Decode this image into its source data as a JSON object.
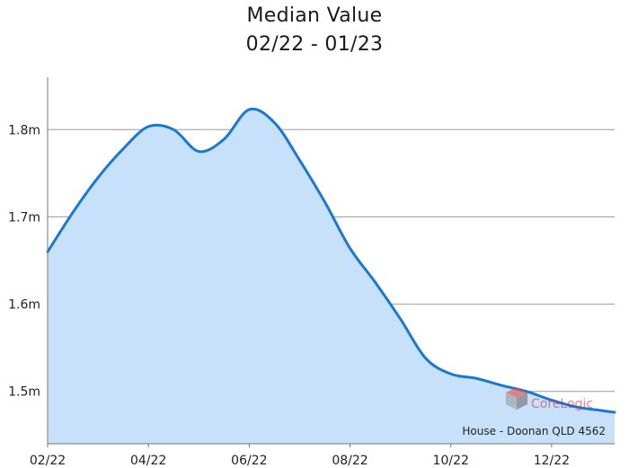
{
  "chart_data": {
    "type": "area",
    "title": "Median Value",
    "subtitle": "02/22 - 01/23",
    "x_tick_labels": [
      "02/22",
      "04/22",
      "06/22",
      "08/22",
      "10/22",
      "12/22"
    ],
    "y_tick_labels": [
      "1.5m",
      "1.6m",
      "1.7m",
      "1.8m"
    ],
    "y_ticks": [
      1.5,
      1.6,
      1.7,
      1.8
    ],
    "ylim": [
      1.44,
      1.86
    ],
    "x_range_months": [
      0,
      11.25
    ],
    "grid": "horizontal",
    "series": [
      {
        "x": [
          0,
          0.5,
          1,
          1.5,
          2,
          2.5,
          3,
          3.5,
          4,
          4.5,
          5,
          5.5,
          6,
          6.5,
          7,
          7.5,
          8,
          8.5,
          9,
          9.5,
          10,
          10.5,
          11,
          11.25
        ],
        "values": [
          1.66,
          1.705,
          1.745,
          1.778,
          1.8035,
          1.8,
          1.775,
          1.789,
          1.823,
          1.808,
          1.765,
          1.717,
          1.664,
          1.625,
          1.583,
          1.538,
          1.52,
          1.515,
          1.507,
          1.5,
          1.49,
          1.482,
          1.478,
          1.476
        ],
        "line_color": "#1a78d2",
        "fill_color": "#c7e1fb"
      }
    ]
  },
  "watermark": {
    "brand": "CoreLogic",
    "icon": "corelogic-cube-icon"
  },
  "footnote": "House - Doonan QLD 4562"
}
